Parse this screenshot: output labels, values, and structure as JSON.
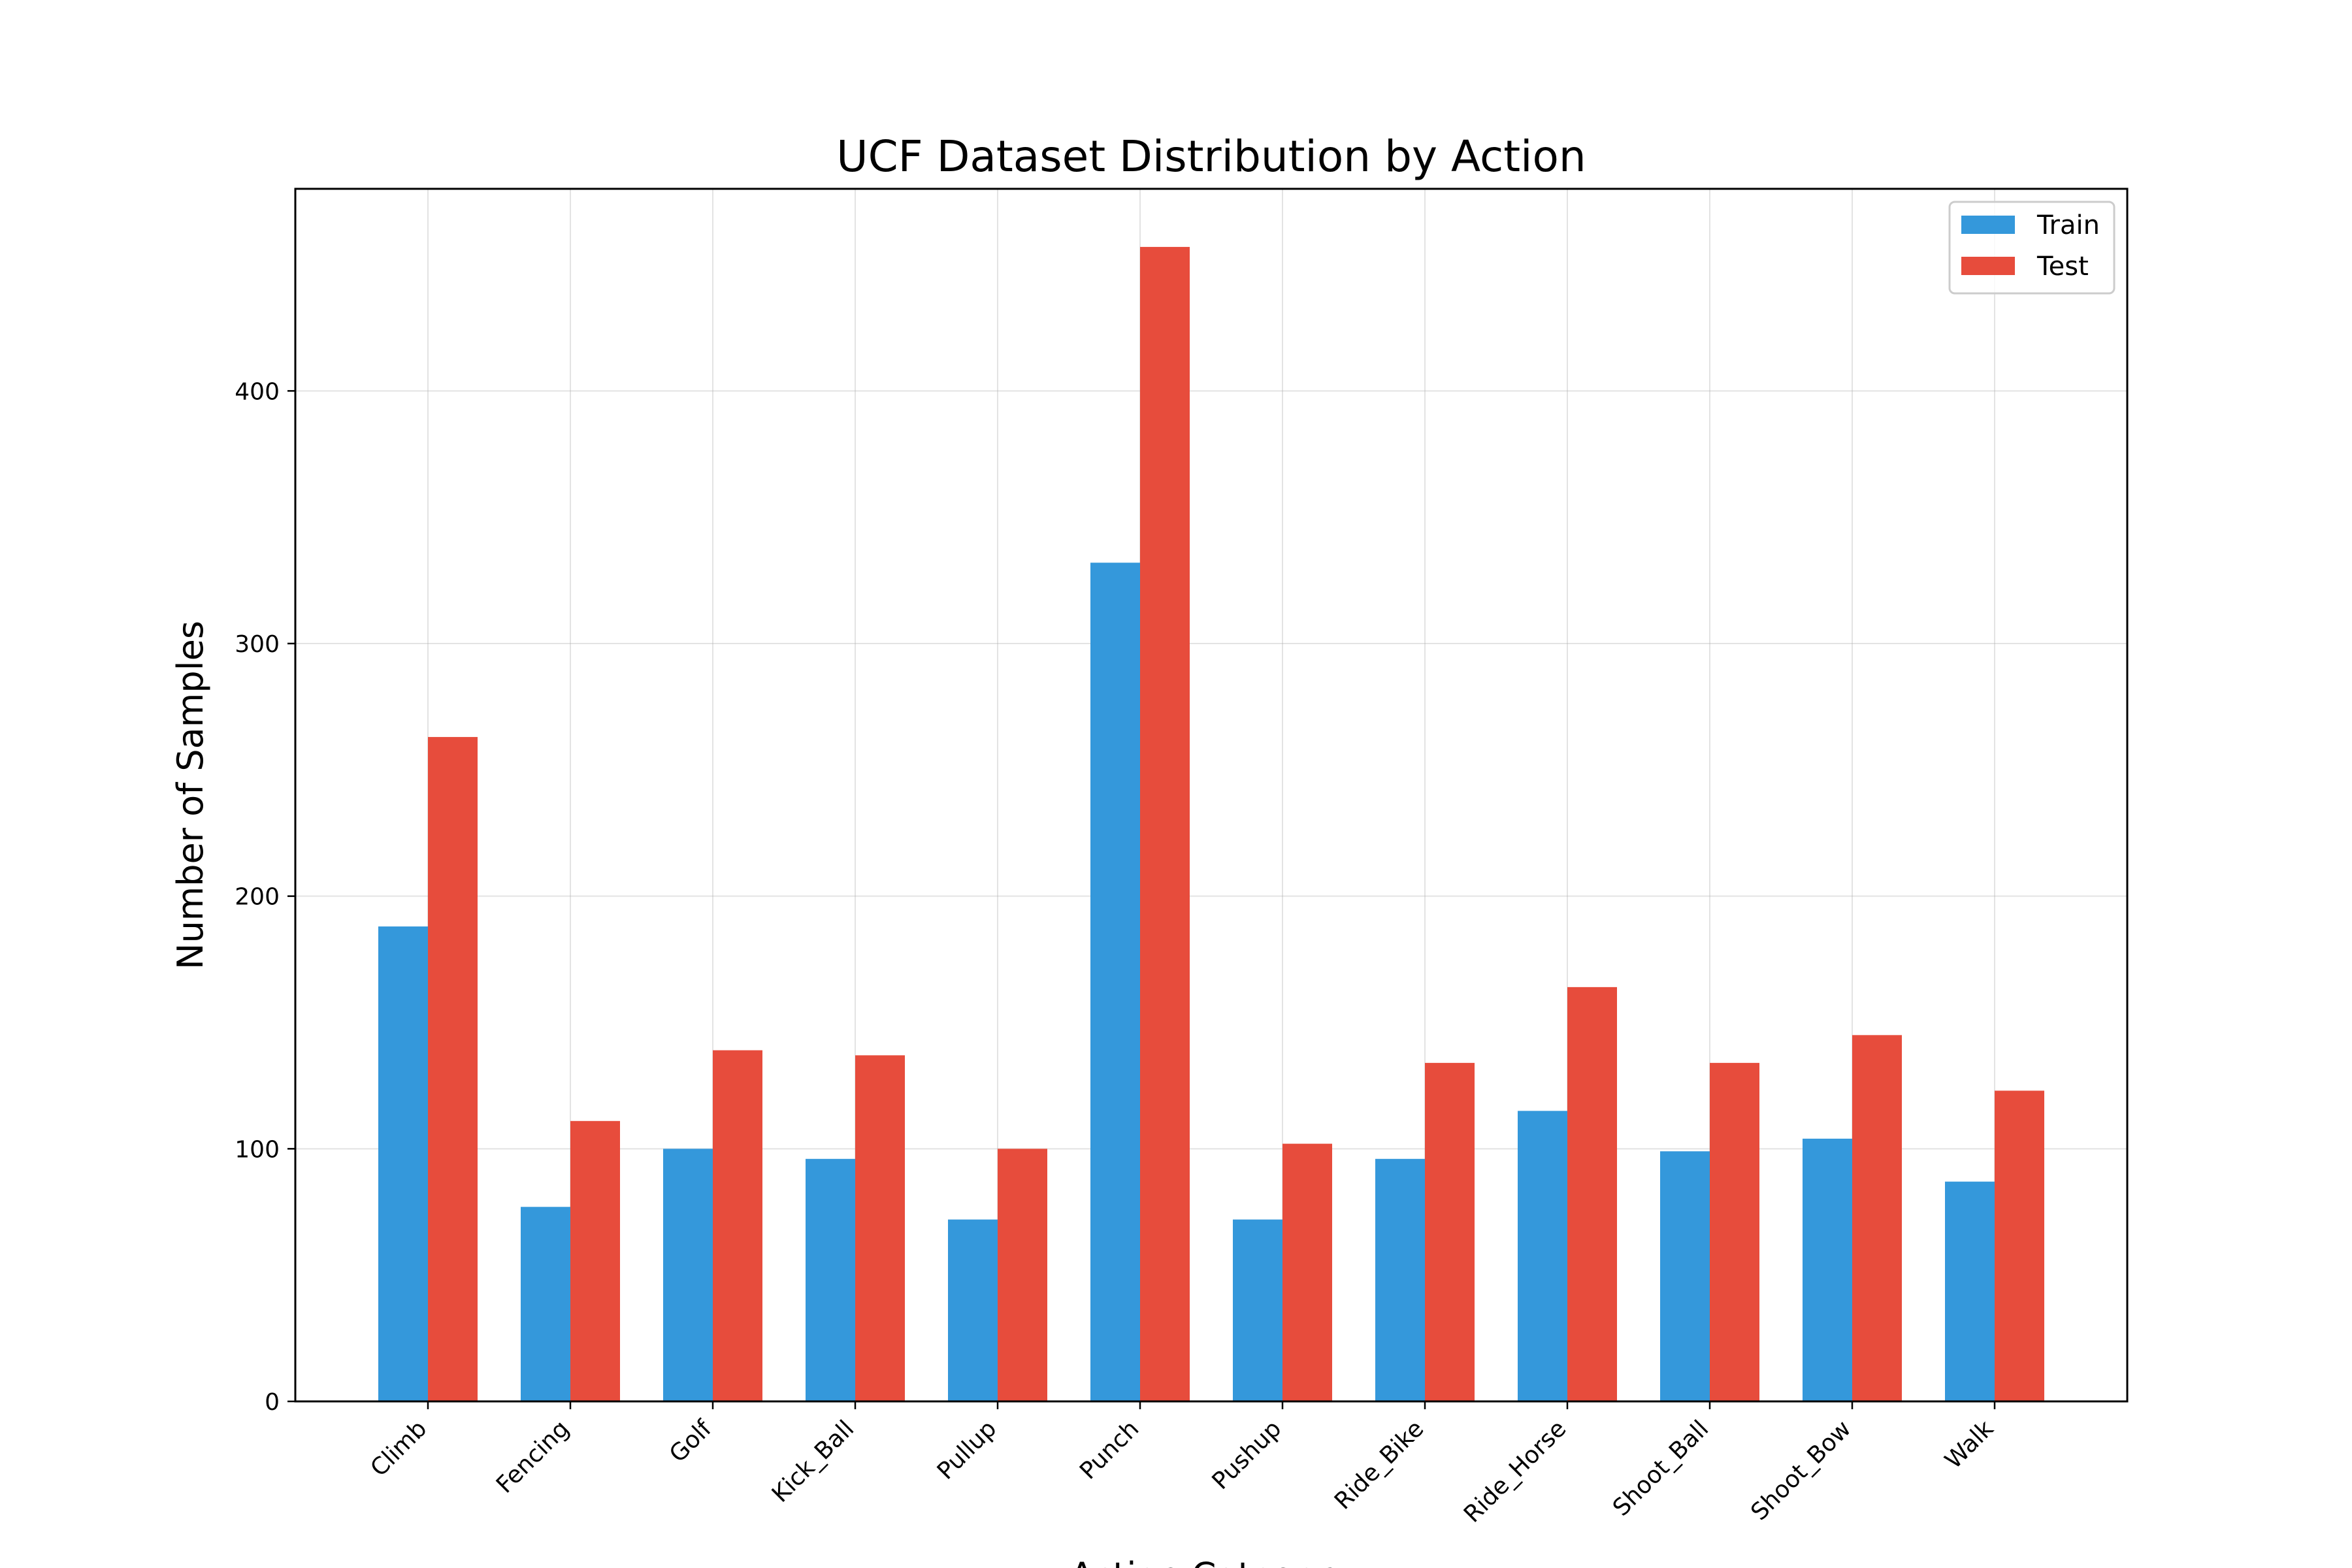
{
  "chart_data": {
    "type": "bar",
    "title": "UCF Dataset Distribution by Action",
    "xlabel": "Action Category",
    "ylabel": "Number of Samples",
    "categories": [
      "Climb",
      "Fencing",
      "Golf",
      "Kick_Ball",
      "Pullup",
      "Punch",
      "Pushup",
      "Ride_Bike",
      "Ride_Horse",
      "Shoot_Ball",
      "Shoot_Bow",
      "Walk"
    ],
    "series": [
      {
        "name": "Train",
        "color": "#3498db",
        "values": [
          188,
          77,
          100,
          96,
          72,
          332,
          72,
          96,
          115,
          99,
          104,
          87
        ]
      },
      {
        "name": "Test",
        "color": "#e74c3c",
        "values": [
          263,
          111,
          139,
          137,
          100,
          457,
          102,
          134,
          164,
          134,
          145,
          123
        ]
      }
    ],
    "ylim": [
      0,
      480
    ],
    "yticks": [
      0,
      100,
      200,
      300,
      400
    ],
    "grid": true,
    "legend_position": "top-right"
  }
}
